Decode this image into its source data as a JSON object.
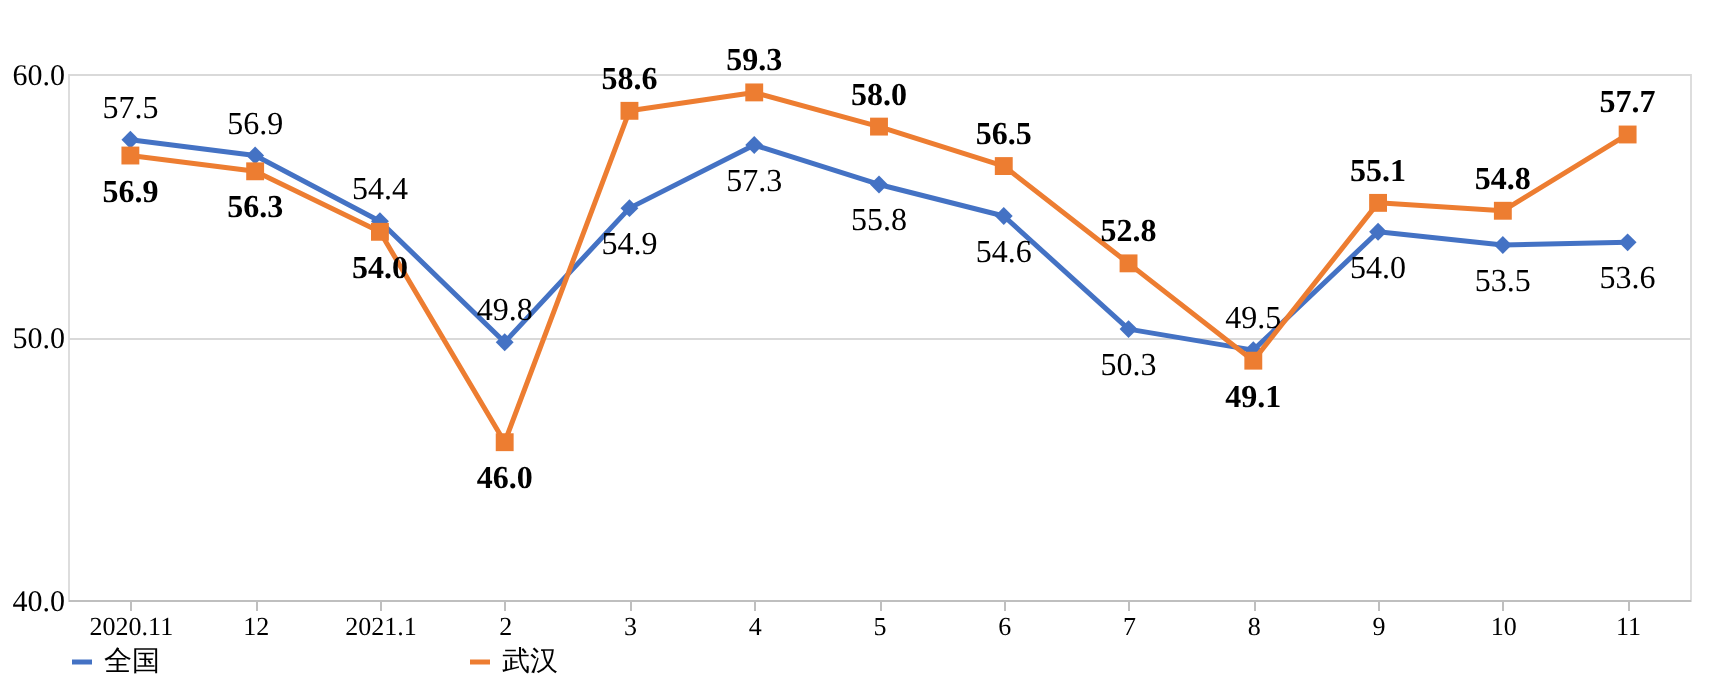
{
  "chart_data": {
    "type": "line",
    "categories": [
      "2020.11",
      "12",
      "2021.1",
      "2",
      "3",
      "4",
      "5",
      "6",
      "7",
      "8",
      "9",
      "10",
      "11"
    ],
    "series": [
      {
        "name": "全国",
        "color": "#4472c4",
        "marker": "diamond",
        "values": [
          57.5,
          56.9,
          54.4,
          49.8,
          54.9,
          57.3,
          55.8,
          54.6,
          50.3,
          49.5,
          54.0,
          53.5,
          53.6
        ],
        "value_labels": [
          "57.5",
          "56.9",
          "54.4",
          "49.8",
          "54.9",
          "57.3",
          "55.8",
          "54.6",
          "50.3",
          "49.5",
          "54.0",
          "53.5",
          "53.6"
        ]
      },
      {
        "name": "武汉",
        "color": "#ed7d31",
        "marker": "square",
        "values": [
          56.9,
          56.3,
          54.0,
          46.0,
          58.6,
          59.3,
          58.0,
          56.5,
          52.8,
          49.1,
          55.1,
          54.8,
          57.7
        ],
        "value_labels": [
          "56.9",
          "56.3",
          "54.0",
          "46.0",
          "58.6",
          "59.3",
          "58.0",
          "56.5",
          "52.8",
          "49.1",
          "55.1",
          "54.8",
          "57.7"
        ]
      }
    ],
    "ylim": [
      40,
      60
    ],
    "yticks": [
      {
        "value": 40,
        "label": "40.0"
      },
      {
        "value": 50,
        "label": "50.0"
      },
      {
        "value": 60,
        "label": "60.0"
      }
    ],
    "grid": "y",
    "legend": "bottom",
    "line_style": "solid"
  }
}
